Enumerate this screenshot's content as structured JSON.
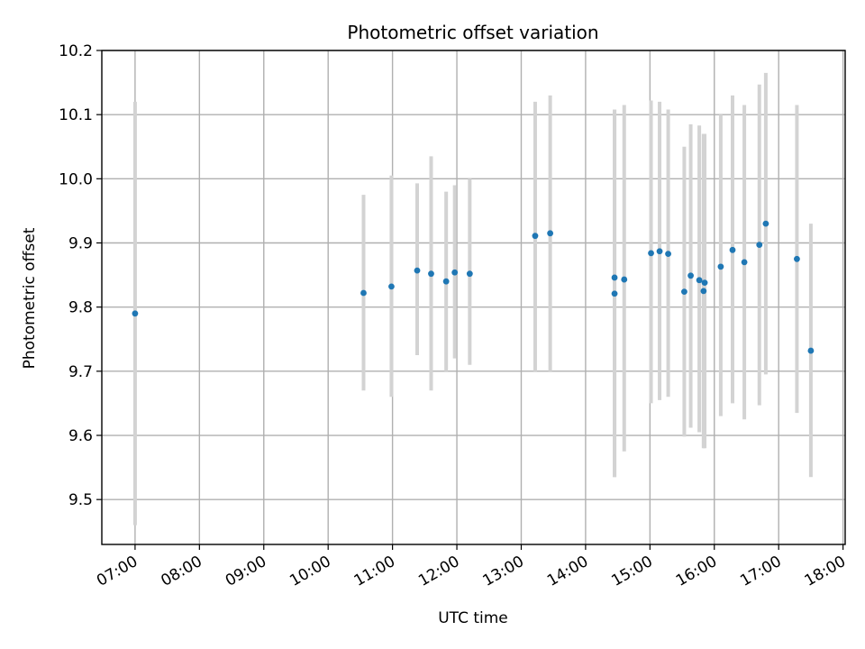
{
  "chart_data": {
    "type": "scatter",
    "title": "Photometric offset variation",
    "xlabel": "UTC time",
    "ylabel": "Photometric offset",
    "x_ticks": [
      "07:00",
      "08:00",
      "09:00",
      "10:00",
      "11:00",
      "12:00",
      "13:00",
      "14:00",
      "15:00",
      "16:00",
      "17:00",
      "18:00"
    ],
    "y_ticks": [
      "9.5",
      "9.6",
      "9.7",
      "9.8",
      "9.9",
      "10.0",
      "10.1",
      "10.2"
    ],
    "xlim": [
      "06:29",
      "18:02"
    ],
    "ylim": [
      9.43,
      10.2
    ],
    "grid": true,
    "colors": {
      "points": "#1f77b4",
      "error_bars": "#d3d3d3"
    },
    "series": [
      {
        "points": [
          {
            "x": "07:00",
            "y": 9.79,
            "lo": 9.46,
            "hi": 10.12
          },
          {
            "x": "10:33",
            "y": 9.822,
            "lo": 9.67,
            "hi": 9.975
          },
          {
            "x": "10:59",
            "y": 9.832,
            "lo": 9.66,
            "hi": 10.005
          },
          {
            "x": "11:23",
            "y": 9.857,
            "lo": 9.725,
            "hi": 9.993
          },
          {
            "x": "11:36",
            "y": 9.852,
            "lo": 9.67,
            "hi": 10.035
          },
          {
            "x": "11:50",
            "y": 9.84,
            "lo": 9.7,
            "hi": 9.98
          },
          {
            "x": "11:58",
            "y": 9.854,
            "lo": 9.72,
            "hi": 9.99
          },
          {
            "x": "12:12",
            "y": 9.852,
            "lo": 9.71,
            "hi": 10.0
          },
          {
            "x": "13:13",
            "y": 9.911,
            "lo": 9.7,
            "hi": 10.12
          },
          {
            "x": "13:27",
            "y": 9.915,
            "lo": 9.7,
            "hi": 10.13
          },
          {
            "x": "14:27",
            "y": 9.846,
            "lo": 9.535,
            "hi": 10.108
          },
          {
            "x": "14:27",
            "y": 9.821,
            "lo": 9.535,
            "hi": 10.108
          },
          {
            "x": "14:36",
            "y": 9.843,
            "lo": 9.575,
            "hi": 10.115
          },
          {
            "x": "15:01",
            "y": 9.884,
            "lo": 9.65,
            "hi": 10.122
          },
          {
            "x": "15:09",
            "y": 9.887,
            "lo": 9.655,
            "hi": 10.12
          },
          {
            "x": "15:17",
            "y": 9.883,
            "lo": 9.66,
            "hi": 10.108
          },
          {
            "x": "15:32",
            "y": 9.824,
            "lo": 9.598,
            "hi": 10.05
          },
          {
            "x": "15:38",
            "y": 9.849,
            "lo": 9.612,
            "hi": 10.085
          },
          {
            "x": "15:46",
            "y": 9.842,
            "lo": 9.605,
            "hi": 10.083
          },
          {
            "x": "15:50",
            "y": 9.825,
            "lo": 9.58,
            "hi": 10.07
          },
          {
            "x": "15:51",
            "y": 9.838,
            "lo": 9.58,
            "hi": 10.07
          },
          {
            "x": "16:06",
            "y": 9.863,
            "lo": 9.63,
            "hi": 10.1
          },
          {
            "x": "16:17",
            "y": 9.889,
            "lo": 9.65,
            "hi": 10.13
          },
          {
            "x": "16:28",
            "y": 9.87,
            "lo": 9.625,
            "hi": 10.115
          },
          {
            "x": "16:42",
            "y": 9.897,
            "lo": 9.647,
            "hi": 10.147
          },
          {
            "x": "16:48",
            "y": 9.93,
            "lo": 9.695,
            "hi": 10.165
          },
          {
            "x": "17:17",
            "y": 9.875,
            "lo": 9.635,
            "hi": 10.115
          },
          {
            "x": "17:30",
            "y": 9.732,
            "lo": 9.535,
            "hi": 9.93
          }
        ]
      }
    ]
  }
}
